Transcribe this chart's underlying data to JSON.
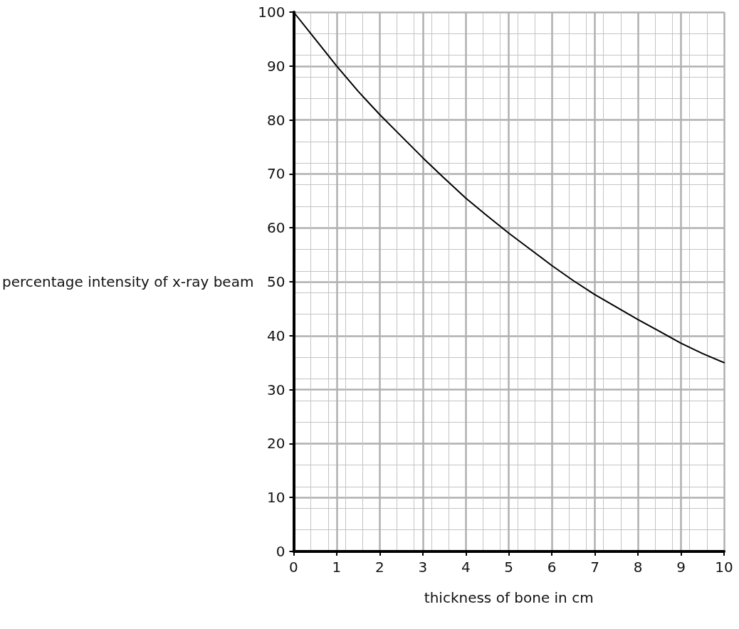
{
  "chart_data": {
    "type": "line",
    "xlabel": "thickness of bone in cm",
    "ylabel": "percentage intensity of x-ray beam",
    "x": [
      0,
      0.5,
      1,
      1.5,
      2,
      2.5,
      3,
      3.5,
      4,
      4.5,
      5,
      5.5,
      6,
      6.5,
      7,
      7.5,
      8,
      8.5,
      9,
      9.5,
      10
    ],
    "series": [
      {
        "color": "#000000",
        "values": [
          100,
          95,
          90,
          85.3,
          81,
          77,
          73,
          69.2,
          65.5,
          62.2,
          59,
          56,
          53,
          50.2,
          47.6,
          45.3,
          43,
          40.8,
          38.6,
          36.7,
          35
        ]
      }
    ],
    "xlim": [
      0,
      10
    ],
    "xticks": [
      0,
      1,
      2,
      3,
      4,
      5,
      6,
      7,
      8,
      9,
      10
    ],
    "ylim": [
      0,
      100
    ],
    "yticks": [
      0,
      10,
      20,
      30,
      40,
      50,
      60,
      70,
      80,
      90,
      100
    ],
    "grid": true,
    "marker": "none",
    "line_style": "solid"
  }
}
